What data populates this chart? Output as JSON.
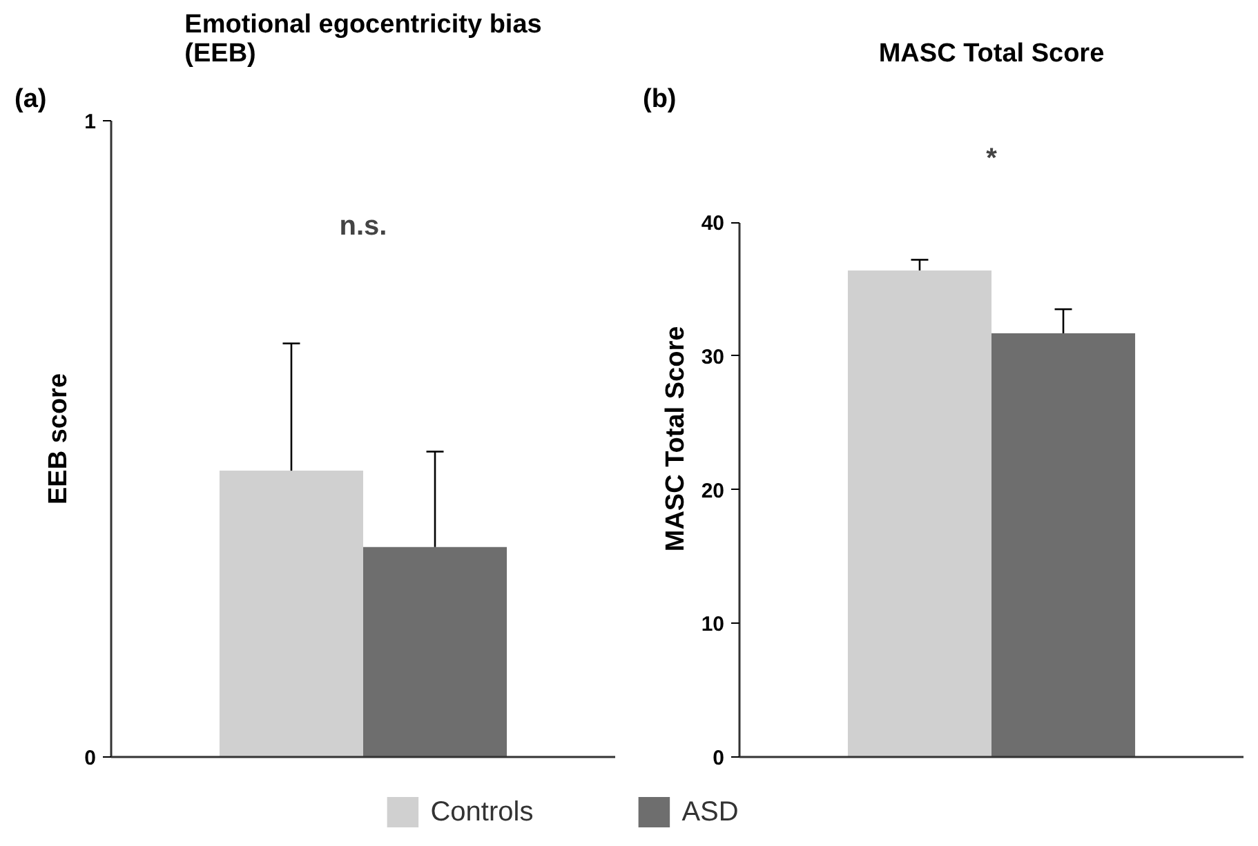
{
  "chart_data": [
    {
      "type": "bar",
      "title": "Emotional egocentricity bias\n(EEB)",
      "ylabel": "EEB score",
      "categories": [
        null
      ],
      "series": [
        {
          "color": "#d0d0d0",
          "values": [
            0.45
          ],
          "errors": [
            [
              0.45,
              0.65
            ]
          ]
        },
        {
          "color": "#6e6e6e",
          "values": [
            0.33
          ],
          "errors": [
            [
              0.33,
              0.48
            ]
          ]
        }
      ],
      "ylim": [
        0,
        1
      ],
      "yticks": [
        0,
        1
      ],
      "grid": false,
      "annotations": [
        "(a)",
        "n.s."
      ]
    },
    {
      "type": "bar",
      "title": "MASC Total Score",
      "ylabel": "MASC Total Score",
      "categories": [
        null
      ],
      "series": [
        {
          "name": "Controls",
          "color": "#d0d0d0",
          "values": [
            36.4
          ],
          "errors": [
            [
              36.4,
              37.2
            ]
          ]
        },
        {
          "name": "ASD",
          "color": "#6e6e6e",
          "values": [
            31.7
          ],
          "errors": [
            [
              31.7,
              33.5
            ]
          ]
        }
      ],
      "ylim": [
        0,
        40
      ],
      "yticks": [
        0,
        10,
        20,
        30,
        40
      ],
      "grid": false,
      "legend": "bottom",
      "annotations": [
        "(b)",
        "*"
      ]
    }
  ]
}
